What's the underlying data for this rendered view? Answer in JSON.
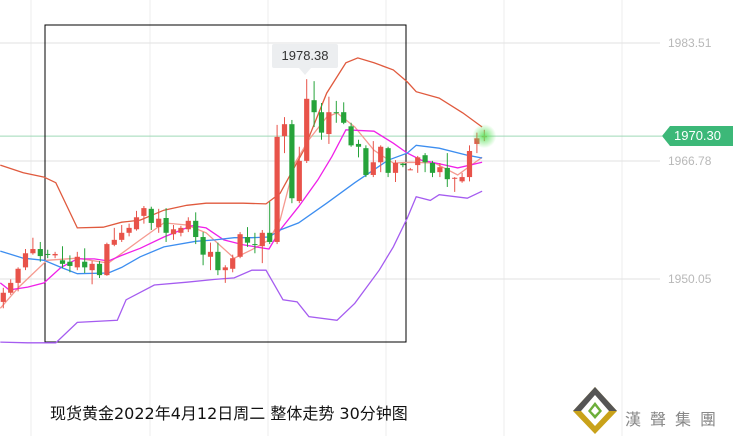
{
  "chart_data": {
    "type": "candlestick",
    "title": "",
    "caption": "现货黄金2022年4月12日周二 整体走势 30分钟图",
    "y_ticks": [
      "1983.51",
      "1966.78",
      "1950.05"
    ],
    "ylim": [
      1938.5,
      1990
    ],
    "grid": true,
    "current_price": "1970.30",
    "high_label": "1978.38",
    "colors": {
      "up": "#e8534a",
      "down": "#26a33a",
      "upper_band": "#e05a3e",
      "lower_band": "#a55cf0",
      "mid_blue": "#3d8ef0",
      "magenta": "#f020e8",
      "salmon": "#f59a90",
      "price_tag": "#3cb878"
    },
    "candles_ohlc": [
      [
        1946.8,
        1948.8,
        1945.9,
        1948.1
      ],
      [
        1948.1,
        1950.0,
        1947.8,
        1949.5
      ],
      [
        1949.5,
        1951.7,
        1948.3,
        1951.5
      ],
      [
        1951.7,
        1954.3,
        1951.3,
        1953.7
      ],
      [
        1953.7,
        1955.9,
        1953.5,
        1954.3
      ],
      [
        1954.3,
        1955.3,
        1952.5,
        1953.3
      ],
      [
        1953.6,
        1954.2,
        1953.0,
        1953.5
      ],
      [
        1953.4,
        1953.9,
        1953.0,
        1953.6
      ],
      [
        1952.7,
        1954.7,
        1951.6,
        1952.2
      ],
      [
        1952.5,
        1953.4,
        1951.0,
        1951.9
      ],
      [
        1951.7,
        1953.9,
        1951.3,
        1953.2
      ],
      [
        1952.5,
        1954.4,
        1950.9,
        1951.7
      ],
      [
        1951.3,
        1952.6,
        1949.3,
        1952.2
      ],
      [
        1952.2,
        1952.6,
        1950.2,
        1950.6
      ],
      [
        1950.6,
        1955.2,
        1950.5,
        1955.0
      ],
      [
        1954.9,
        1957.3,
        1954.7,
        1955.6
      ],
      [
        1955.6,
        1957.7,
        1955.3,
        1956.6
      ],
      [
        1956.6,
        1957.9,
        1956.1,
        1957.3
      ],
      [
        1957.1,
        1959.7,
        1956.9,
        1958.8
      ],
      [
        1959.0,
        1960.4,
        1957.9,
        1960.1
      ],
      [
        1960.0,
        1960.3,
        1957.0,
        1958.0
      ],
      [
        1957.4,
        1960.0,
        1956.6,
        1958.6
      ],
      [
        1958.7,
        1960.1,
        1955.3,
        1956.6
      ],
      [
        1956.4,
        1957.7,
        1955.6,
        1957.1
      ],
      [
        1956.6,
        1957.6,
        1956.1,
        1957.3
      ],
      [
        1957.1,
        1958.8,
        1956.7,
        1958.3
      ],
      [
        1958.3,
        1959.5,
        1955.0,
        1956.0
      ],
      [
        1956.0,
        1956.7,
        1952.0,
        1953.5
      ],
      [
        1953.2,
        1955.2,
        1951.3,
        1953.9
      ],
      [
        1953.9,
        1955.2,
        1950.6,
        1951.3
      ],
      [
        1951.3,
        1952.0,
        1949.5,
        1951.7
      ],
      [
        1951.5,
        1953.5,
        1951.0,
        1953.0
      ],
      [
        1953.2,
        1956.7,
        1953.0,
        1956.4
      ],
      [
        1956.0,
        1957.4,
        1954.6,
        1955.2
      ],
      [
        1955.0,
        1956.6,
        1953.7,
        1954.9
      ],
      [
        1954.7,
        1957.0,
        1952.3,
        1956.6
      ],
      [
        1956.6,
        1961.0,
        1955.0,
        1955.3
      ],
      [
        1955.3,
        1971.9,
        1955.0,
        1970.2
      ],
      [
        1970.3,
        1973.0,
        1967.9,
        1972.0
      ],
      [
        1972.0,
        1972.6,
        1960.8,
        1961.5
      ],
      [
        1961.1,
        1968.8,
        1960.8,
        1966.8
      ],
      [
        1966.8,
        1978.38,
        1966.5,
        1975.6
      ],
      [
        1975.4,
        1978.1,
        1971.6,
        1973.7
      ],
      [
        1973.7,
        1975.0,
        1969.8,
        1970.8
      ],
      [
        1970.6,
        1975.9,
        1969.2,
        1973.7
      ],
      [
        1973.7,
        1975.3,
        1972.2,
        1973.6
      ],
      [
        1973.7,
        1975.1,
        1972.0,
        1972.2
      ],
      [
        1971.7,
        1972.2,
        1968.8,
        1969.0
      ],
      [
        1969.2,
        1969.8,
        1967.3,
        1968.8
      ],
      [
        1968.6,
        1969.0,
        1964.5,
        1964.8
      ],
      [
        1964.8,
        1969.6,
        1964.5,
        1966.6
      ],
      [
        1966.6,
        1969.0,
        1965.2,
        1968.8
      ],
      [
        1968.6,
        1968.8,
        1964.5,
        1965.1
      ],
      [
        1965.1,
        1966.9,
        1963.8,
        1966.5
      ],
      [
        1966.4,
        1966.5,
        1965.9,
        1966.2
      ],
      [
        1965.6,
        1965.8,
        1965.5,
        1965.6
      ],
      [
        1966.2,
        1967.5,
        1965.1,
        1967.3
      ],
      [
        1967.6,
        1967.9,
        1965.2,
        1966.6
      ],
      [
        1966.5,
        1966.8,
        1964.5,
        1965.1
      ],
      [
        1965.2,
        1966.5,
        1964.5,
        1965.9
      ],
      [
        1965.8,
        1967.9,
        1963.1,
        1964.2
      ],
      [
        1964.4,
        1964.5,
        1962.4,
        1964.4
      ],
      [
        1963.9,
        1965.1,
        1963.7,
        1964.5
      ],
      [
        1964.5,
        1969.0,
        1963.9,
        1968.2
      ],
      [
        1969.2,
        1970.8,
        1967.9,
        1970.0
      ],
      [
        1970.2,
        1971.2,
        1969.6,
        1970.3
      ]
    ],
    "lines": {
      "upper_band": [
        [
          -0.4,
          1966.2
        ],
        [
          2.7,
          1965.1
        ],
        [
          5.5,
          1964.5
        ],
        [
          7.1,
          1963.7
        ],
        [
          10.0,
          1957.3
        ],
        [
          13.5,
          1957.4
        ],
        [
          16.0,
          1958.1
        ],
        [
          18.5,
          1958.4
        ],
        [
          21.7,
          1959.8
        ],
        [
          24.8,
          1960.5
        ],
        [
          27.4,
          1960.8
        ],
        [
          32.4,
          1960.8
        ],
        [
          35.5,
          1960.7
        ],
        [
          37.4,
          1962.2
        ],
        [
          40.6,
          1968.3
        ],
        [
          43.7,
          1976.4
        ],
        [
          46.3,
          1980.7
        ],
        [
          47.9,
          1981.4
        ],
        [
          50.1,
          1980.7
        ],
        [
          52.7,
          1979.7
        ],
        [
          54.6,
          1978.0
        ],
        [
          55.8,
          1976.6
        ],
        [
          58.9,
          1975.7
        ],
        [
          62.1,
          1973.6
        ],
        [
          64.7,
          1971.6
        ]
      ],
      "lower_band": [
        [
          -0.4,
          1941.1
        ],
        [
          3.3,
          1941.0
        ],
        [
          7.1,
          1941.0
        ],
        [
          10.0,
          1943.9
        ],
        [
          15.4,
          1944.2
        ],
        [
          16.6,
          1947.1
        ],
        [
          20.4,
          1949.2
        ],
        [
          24.8,
          1949.6
        ],
        [
          28.6,
          1950.0
        ],
        [
          31.2,
          1950.2
        ],
        [
          33.6,
          1951.3
        ],
        [
          35.5,
          1951.3
        ],
        [
          37.8,
          1947.1
        ],
        [
          39.7,
          1946.8
        ],
        [
          41.3,
          1944.7
        ],
        [
          45.1,
          1944.2
        ],
        [
          47.5,
          1946.6
        ],
        [
          50.8,
          1951.3
        ],
        [
          52.7,
          1954.6
        ],
        [
          54.6,
          1958.7
        ],
        [
          55.8,
          1961.7
        ],
        [
          57.7,
          1961.2
        ],
        [
          58.9,
          1962.0
        ],
        [
          62.7,
          1961.5
        ],
        [
          64.7,
          1962.5
        ]
      ],
      "mid_blue": [
        [
          -0.4,
          1954.0
        ],
        [
          2.7,
          1953.0
        ],
        [
          5.5,
          1952.7
        ],
        [
          7.8,
          1951.7
        ],
        [
          10.0,
          1950.8
        ],
        [
          14.2,
          1950.9
        ],
        [
          16.0,
          1951.7
        ],
        [
          18.5,
          1953.2
        ],
        [
          21.7,
          1954.6
        ],
        [
          26.0,
          1955.4
        ],
        [
          28.6,
          1955.6
        ],
        [
          31.2,
          1955.9
        ],
        [
          33.6,
          1955.9
        ],
        [
          35.9,
          1956.0
        ],
        [
          37.4,
          1957.0
        ],
        [
          39.9,
          1958.0
        ],
        [
          43.7,
          1960.8
        ],
        [
          47.5,
          1963.7
        ],
        [
          52.0,
          1966.9
        ],
        [
          54.6,
          1967.9
        ],
        [
          55.8,
          1969.0
        ],
        [
          58.9,
          1968.6
        ],
        [
          62.7,
          1967.6
        ],
        [
          64.7,
          1967.2
        ]
      ],
      "magenta": [
        [
          -0.4,
          1949.5
        ],
        [
          0.8,
          1948.5
        ],
        [
          3.3,
          1948.9
        ],
        [
          5.5,
          1949.5
        ],
        [
          7.8,
          1951.7
        ],
        [
          10.0,
          1952.9
        ],
        [
          12.3,
          1952.9
        ],
        [
          14.2,
          1952.6
        ],
        [
          16.0,
          1953.4
        ],
        [
          18.5,
          1954.4
        ],
        [
          21.7,
          1956.0
        ],
        [
          25.5,
          1957.6
        ],
        [
          27.4,
          1957.3
        ],
        [
          29.8,
          1955.6
        ],
        [
          32.4,
          1954.9
        ],
        [
          35.9,
          1954.3
        ],
        [
          37.4,
          1957.0
        ],
        [
          39.9,
          1960.3
        ],
        [
          42.5,
          1964.1
        ],
        [
          44.4,
          1967.4
        ],
        [
          46.3,
          1971.2
        ],
        [
          50.1,
          1971.0
        ],
        [
          52.7,
          1969.3
        ],
        [
          54.6,
          1967.9
        ],
        [
          56.5,
          1966.9
        ],
        [
          58.9,
          1966.4
        ],
        [
          61.4,
          1965.8
        ],
        [
          64.7,
          1966.6
        ]
      ],
      "salmon": [
        [
          -0.4,
          1945.9
        ],
        [
          2.1,
          1948.9
        ],
        [
          5.9,
          1952.7
        ],
        [
          10.0,
          1953.0
        ],
        [
          14.2,
          1952.3
        ],
        [
          18.5,
          1955.6
        ],
        [
          21.7,
          1958.0
        ],
        [
          24.8,
          1957.7
        ],
        [
          27.4,
          1956.6
        ],
        [
          31.2,
          1953.0
        ],
        [
          33.6,
          1954.2
        ],
        [
          35.9,
          1955.6
        ],
        [
          37.4,
          1958.4
        ],
        [
          39.4,
          1966.5
        ],
        [
          41.3,
          1969.8
        ],
        [
          43.7,
          1973.0
        ],
        [
          45.1,
          1973.6
        ],
        [
          47.5,
          1971.6
        ],
        [
          50.1,
          1968.3
        ],
        [
          52.7,
          1966.5
        ],
        [
          55.1,
          1966.6
        ],
        [
          58.3,
          1966.5
        ],
        [
          61.4,
          1964.8
        ],
        [
          64.7,
          1967.3
        ]
      ]
    },
    "highlight_box_candle_range": [
      6,
      54
    ]
  },
  "logo": {
    "text": "漢聲集團"
  }
}
